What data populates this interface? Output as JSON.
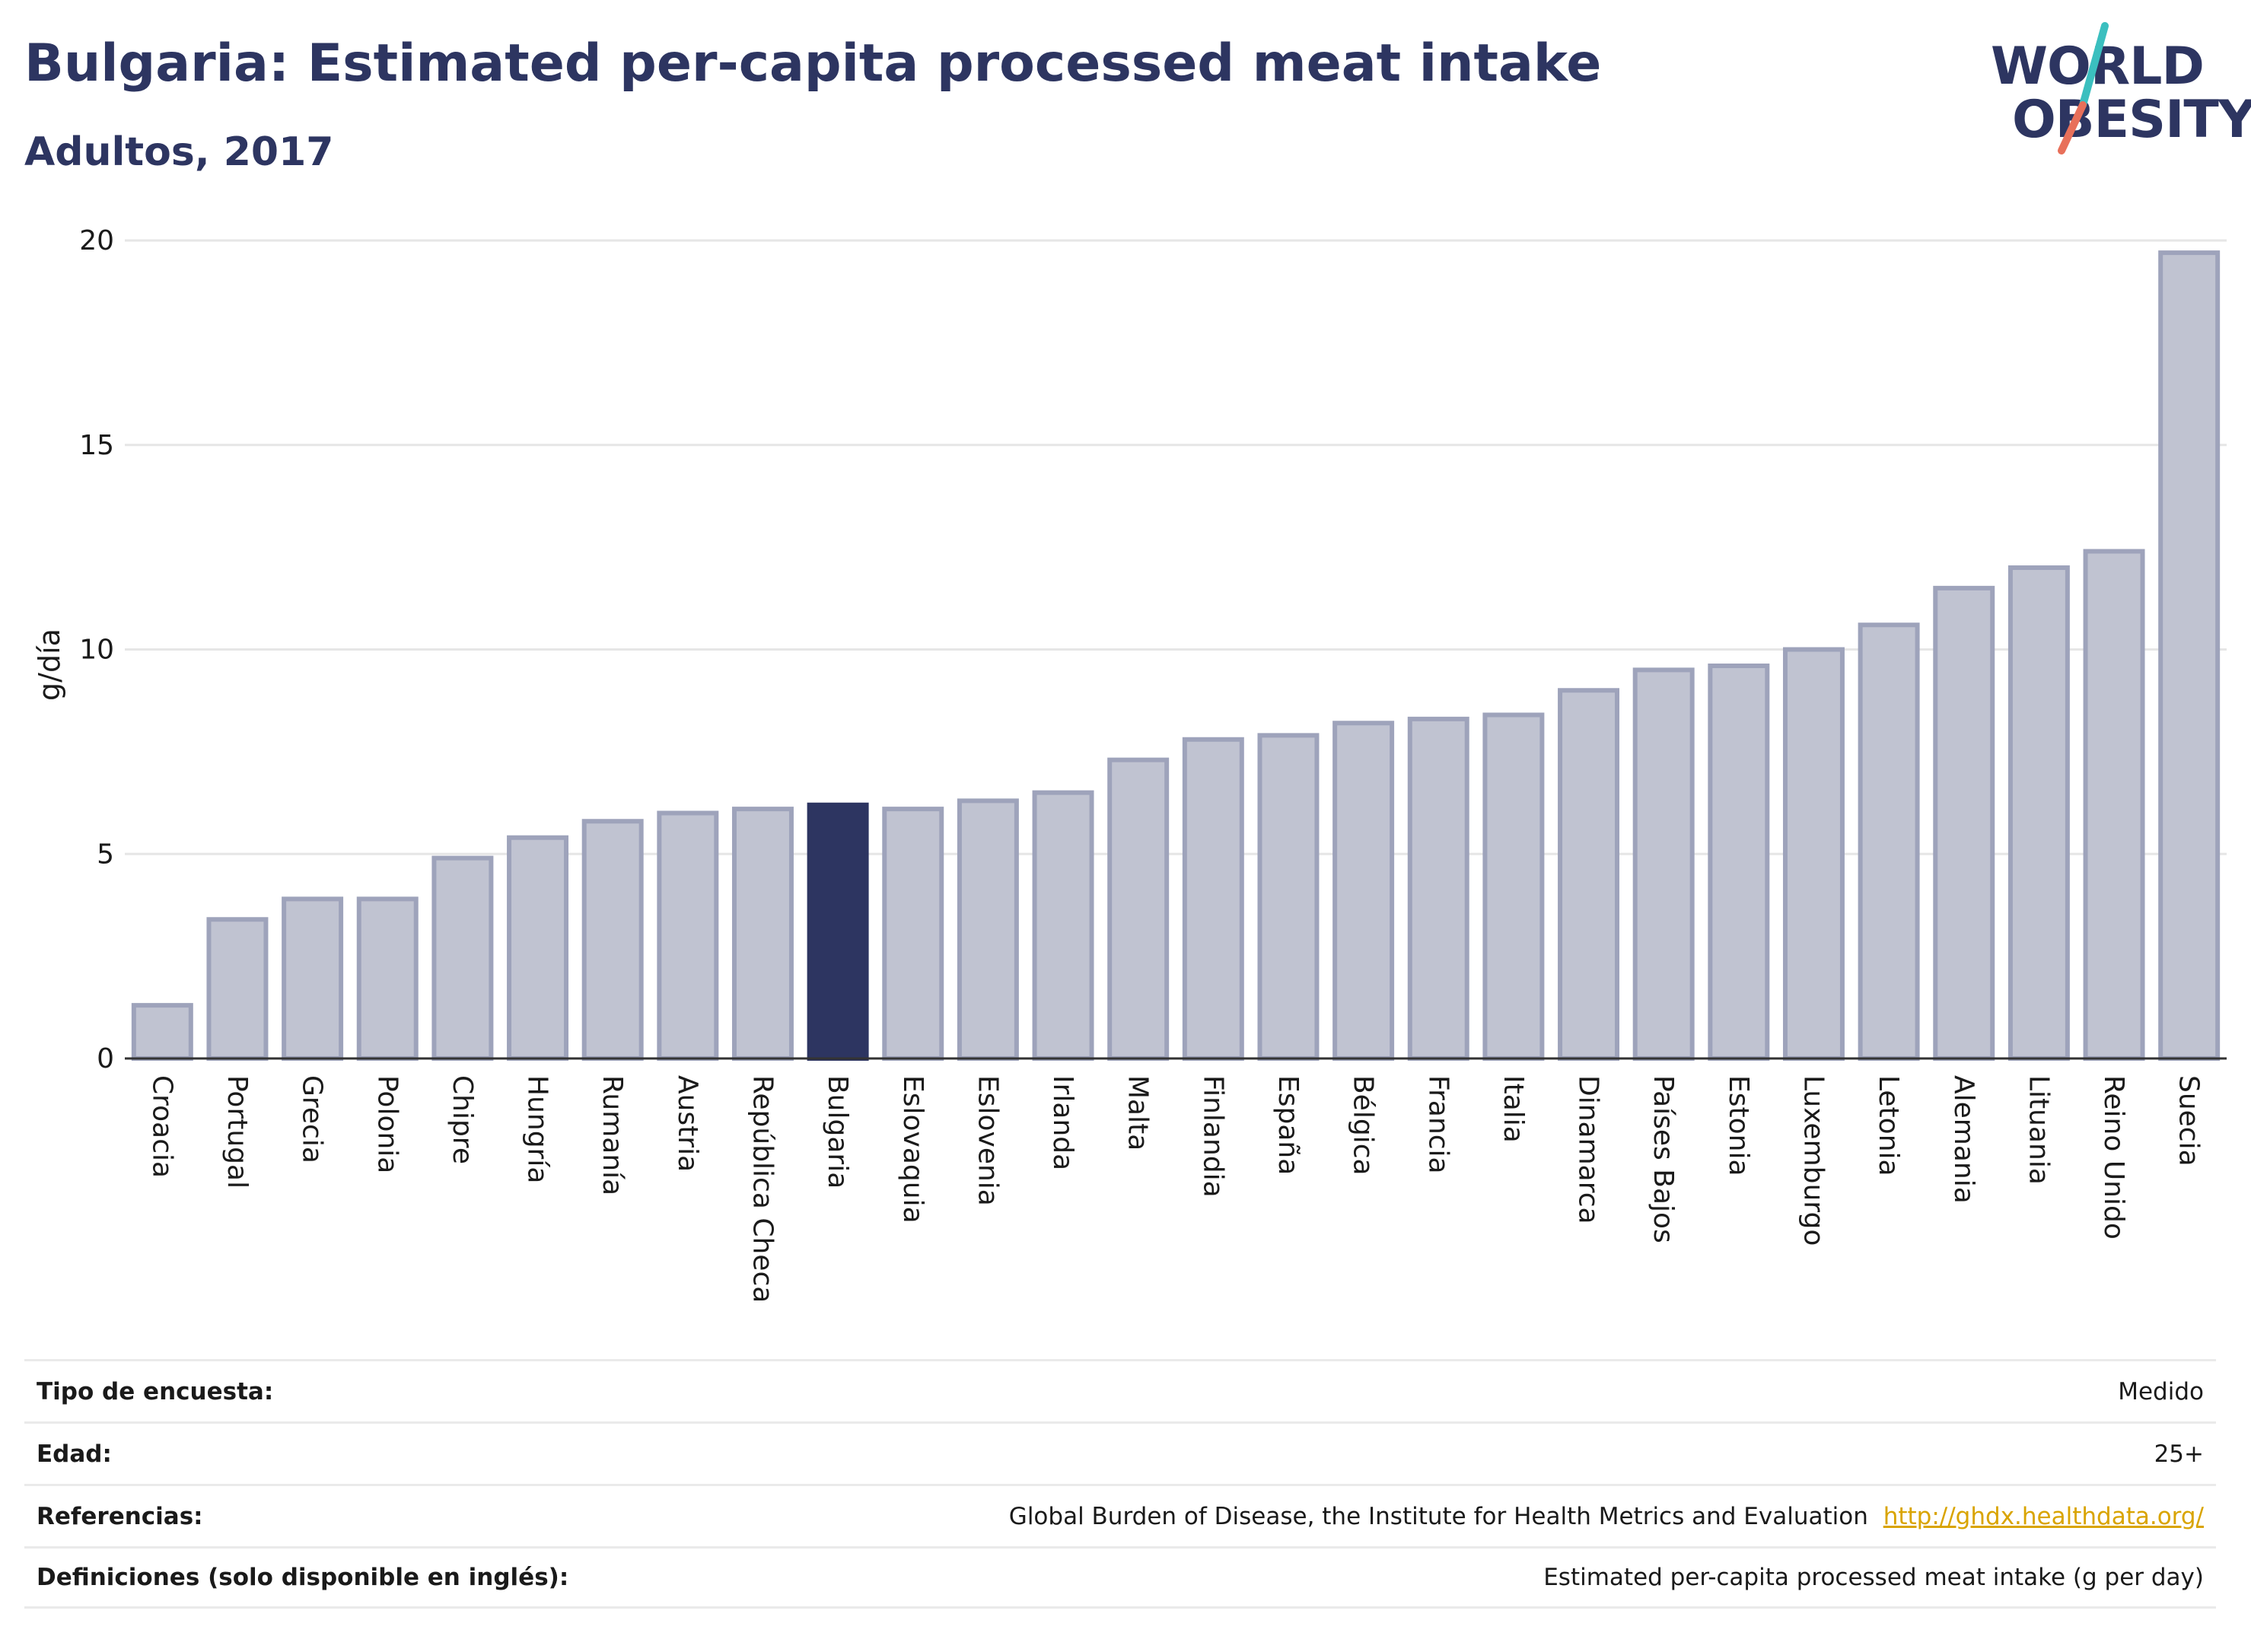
{
  "header": {
    "title": "Bulgaria: Estimated per-capita processed meat intake",
    "subtitle": "Adultos, 2017"
  },
  "logo": {
    "line1": "WORLD",
    "line2": "OBESITY",
    "colors": {
      "text": "#2d3561",
      "slash_top": "#3bbfbf",
      "slash_bottom": "#e8705a"
    }
  },
  "colors": {
    "bar": "#c0c3d1",
    "bar_border": "#9ea3bb",
    "highlight": "#2d3561",
    "grid": "#e6e6e6",
    "axis": "#333333"
  },
  "chart_data": {
    "type": "bar",
    "ylabel": "g/día",
    "ylim": [
      0,
      20
    ],
    "yticks": [
      0,
      5,
      10,
      15,
      20
    ],
    "grid": true,
    "highlight": "Bulgaria",
    "categories": [
      "Croacia",
      "Portugal",
      "Grecia",
      "Polonia",
      "Chipre",
      "Hungría",
      "Rumanía",
      "Austria",
      "República Checa",
      "Bulgaria",
      "Eslovaquia",
      "Eslovenia",
      "Irlanda",
      "Malta",
      "Finlandia",
      "España",
      "Bélgica",
      "Francia",
      "Italia",
      "Dinamarca",
      "Países Bajos",
      "Estonia",
      "Luxemburgo",
      "Letonia",
      "Alemania",
      "Lituania",
      "Reino Unido",
      "Suecia"
    ],
    "values": [
      1.3,
      3.4,
      3.9,
      3.9,
      4.9,
      5.4,
      5.8,
      6.0,
      6.1,
      6.2,
      6.1,
      6.3,
      6.5,
      7.3,
      7.8,
      7.9,
      8.2,
      8.3,
      8.4,
      9.0,
      9.5,
      9.6,
      10.0,
      10.6,
      11.5,
      12.0,
      12.4,
      19.7
    ]
  },
  "footer": {
    "rows": [
      {
        "label": "Tipo de encuesta:",
        "value": "Medido"
      },
      {
        "label": "Edad:",
        "value": "25+"
      },
      {
        "label": "Referencias:",
        "value": "Global Burden of Disease, the Institute for Health Metrics and Evaluation",
        "link": "http://ghdx.healthdata.org/"
      },
      {
        "label": "Definiciones (solo disponible en inglés):",
        "value": "Estimated per-capita processed meat intake (g per day)"
      }
    ]
  }
}
